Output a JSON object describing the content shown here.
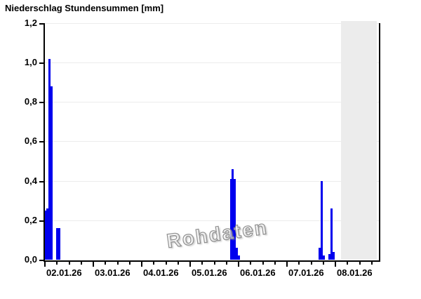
{
  "chart_data": {
    "type": "bar",
    "title": "Niederschlag Stundensummen [mm]",
    "unit": "mm",
    "watermark": "Rohdaten",
    "bar_color": "#0000ee",
    "grid_color": "#ececec",
    "no_data_color": "#ececec",
    "y_axis": {
      "min": 0,
      "max": 1.2,
      "tick_step": 0.2,
      "tick_labels": [
        "0,0",
        "0,2",
        "0,4",
        "0,6",
        "0,8",
        "1,0",
        "1,2"
      ]
    },
    "x_axis": {
      "start": "02.01.26 00:00",
      "end": "08.01.26 22:00",
      "minor_tick_hours": 6,
      "major_tick_hours": 24,
      "day_labels": [
        "02.01.26",
        "03.01.26",
        "04.01.26",
        "05.01.26",
        "06.01.26",
        "07.01.26",
        "08.01.26"
      ]
    },
    "no_data_region": {
      "from": "08.01.26 03:00",
      "from_hour": 147
    },
    "bars": [
      {
        "time": "02.01.26 00:00",
        "hour": 0,
        "value": 0.25
      },
      {
        "time": "02.01.26 01:00",
        "hour": 1,
        "value": 0.26
      },
      {
        "time": "02.01.26 02:00",
        "hour": 2,
        "value": 1.02
      },
      {
        "time": "02.01.26 03:00",
        "hour": 3,
        "value": 0.88
      },
      {
        "time": "02.01.26 06:00",
        "hour": 6,
        "value": 0.16
      },
      {
        "time": "02.01.26 07:00",
        "hour": 7,
        "value": 0.16
      },
      {
        "time": "05.01.26 20:00",
        "hour": 92,
        "value": 0.41
      },
      {
        "time": "05.01.26 21:00",
        "hour": 93,
        "value": 0.46
      },
      {
        "time": "05.01.26 22:00",
        "hour": 94,
        "value": 0.41
      },
      {
        "time": "05.01.26 23:00",
        "hour": 95,
        "value": 0.06
      },
      {
        "time": "06.01.26 00:00",
        "hour": 96,
        "value": 0.02
      },
      {
        "time": "07.01.26 16:00",
        "hour": 136,
        "value": 0.06
      },
      {
        "time": "07.01.26 17:00",
        "hour": 137,
        "value": 0.4
      },
      {
        "time": "07.01.26 18:00",
        "hour": 138,
        "value": 0.02
      },
      {
        "time": "07.01.26 21:00",
        "hour": 141,
        "value": 0.03
      },
      {
        "time": "07.01.26 22:00",
        "hour": 142,
        "value": 0.26
      },
      {
        "time": "07.01.26 23:00",
        "hour": 143,
        "value": 0.04
      }
    ]
  }
}
